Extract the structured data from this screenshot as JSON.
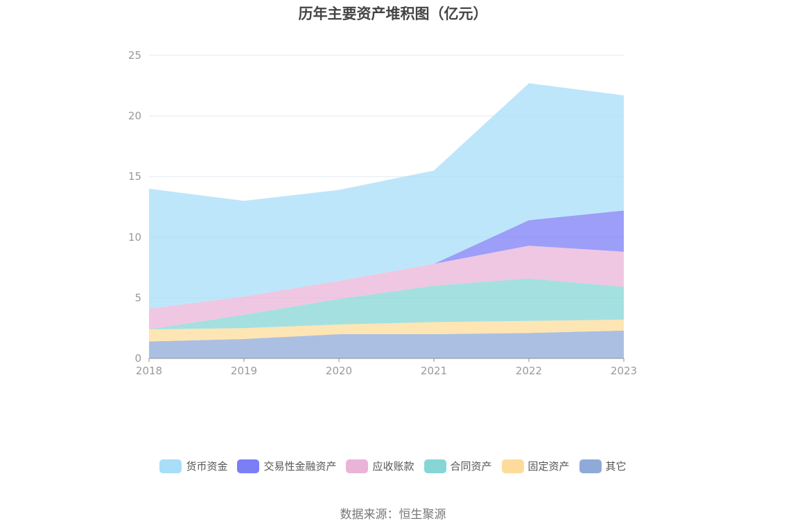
{
  "title": "历年主要资产堆积图（亿元）",
  "source": "数据来源：恒生聚源",
  "chart_data": {
    "type": "area",
    "stacked": true,
    "categories": [
      "2018",
      "2019",
      "2020",
      "2021",
      "2022",
      "2023"
    ],
    "ylim": [
      0,
      25
    ],
    "yticks": [
      "0",
      "5",
      "10",
      "15",
      "20",
      "25"
    ],
    "legend_position": "bottom",
    "grid": true,
    "series": [
      {
        "name": "其它",
        "color": "#8faad8",
        "values": [
          1.4,
          1.6,
          2.0,
          2.0,
          2.1,
          2.3
        ]
      },
      {
        "name": "固定资产",
        "color": "#fddc9b",
        "values": [
          1.0,
          0.9,
          0.8,
          1.0,
          1.0,
          0.9
        ]
      },
      {
        "name": "合同资产",
        "color": "#86d6d6",
        "values": [
          0.0,
          1.1,
          2.1,
          3.0,
          3.5,
          2.7
        ]
      },
      {
        "name": "应收账款",
        "color": "#eab4d8",
        "values": [
          1.7,
          1.5,
          1.5,
          1.8,
          2.7,
          2.9
        ]
      },
      {
        "name": "交易性金融资产",
        "color": "#7b7ef5",
        "values": [
          0.0,
          0.0,
          0.0,
          0.0,
          2.1,
          3.4
        ]
      },
      {
        "name": "货币资金",
        "color": "#a8def8",
        "values": [
          9.9,
          7.9,
          7.5,
          7.7,
          11.3,
          9.5
        ]
      }
    ],
    "legend_order": [
      "货币资金",
      "交易性金融资产",
      "应收账款",
      "合同资产",
      "固定资产",
      "其它"
    ]
  }
}
